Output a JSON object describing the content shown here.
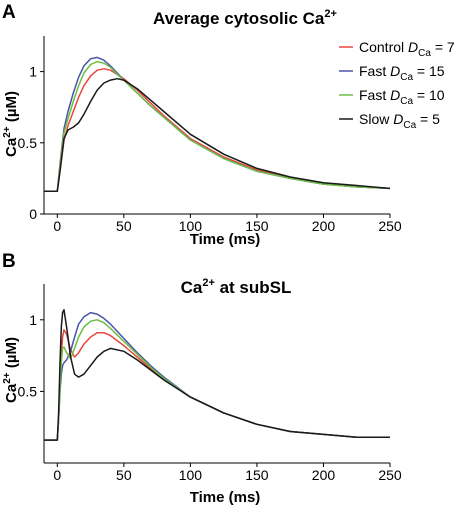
{
  "chart_data": [
    {
      "type": "line",
      "panel": "A",
      "title": "Average cytosolic Ca",
      "title_sup": "2+",
      "xlabel": "Time (ms)",
      "ylabel": "Ca",
      "ylabel_sup": "2+",
      "ylabel_unit": " (µM)",
      "xlim": [
        -10,
        250
      ],
      "ylim": [
        0,
        1.25
      ],
      "xticks": [
        0,
        50,
        100,
        150,
        200,
        250
      ],
      "yticks": [
        0,
        0.5,
        1
      ],
      "ytick_labels": [
        "0",
        "0.5",
        "1"
      ],
      "grid": false,
      "legend": {
        "position": "top-right",
        "entries": [
          {
            "prefix": "Control ",
            "italic": "D",
            "sub": "Ca",
            "suffix": " = 7",
            "color": "#e8473f"
          },
          {
            "prefix": "Fast ",
            "italic": "D",
            "sub": "Ca",
            "suffix": " = 15",
            "color": "#4a55a8"
          },
          {
            "prefix": "Fast ",
            "italic": "D",
            "sub": "Ca",
            "suffix": " = 10",
            "color": "#6dbe45"
          },
          {
            "prefix": "Slow ",
            "italic": "D",
            "sub": "Ca",
            "suffix": " = 5",
            "color": "#1a1a1a"
          }
        ]
      },
      "series": [
        {
          "name": "Control D_Ca = 7",
          "color": "#e8473f",
          "x": [
            -10,
            0,
            2,
            5,
            8,
            12,
            16,
            20,
            25,
            30,
            35,
            40,
            45,
            50,
            60,
            70,
            80,
            100,
            125,
            150,
            175,
            200,
            225,
            250
          ],
          "y": [
            0.16,
            0.16,
            0.3,
            0.52,
            0.62,
            0.72,
            0.82,
            0.9,
            0.97,
            1.01,
            1.02,
            1.01,
            0.98,
            0.95,
            0.87,
            0.78,
            0.69,
            0.53,
            0.4,
            0.31,
            0.25,
            0.21,
            0.19,
            0.18
          ]
        },
        {
          "name": "Fast D_Ca = 15",
          "color": "#4a55a8",
          "x": [
            -10,
            0,
            2,
            5,
            8,
            12,
            16,
            20,
            25,
            30,
            35,
            40,
            45,
            50,
            60,
            70,
            80,
            100,
            125,
            150,
            175,
            200,
            225,
            250
          ],
          "y": [
            0.16,
            0.16,
            0.35,
            0.6,
            0.72,
            0.85,
            0.96,
            1.04,
            1.09,
            1.1,
            1.08,
            1.04,
            0.99,
            0.94,
            0.85,
            0.76,
            0.68,
            0.52,
            0.39,
            0.3,
            0.25,
            0.21,
            0.19,
            0.18
          ]
        },
        {
          "name": "Fast D_Ca = 10",
          "color": "#6dbe45",
          "x": [
            -10,
            0,
            2,
            5,
            8,
            12,
            16,
            20,
            25,
            30,
            35,
            40,
            45,
            50,
            60,
            70,
            80,
            100,
            125,
            150,
            175,
            200,
            225,
            250
          ],
          "y": [
            0.16,
            0.16,
            0.33,
            0.57,
            0.67,
            0.79,
            0.9,
            0.99,
            1.05,
            1.07,
            1.06,
            1.03,
            0.98,
            0.94,
            0.85,
            0.76,
            0.68,
            0.52,
            0.39,
            0.3,
            0.25,
            0.21,
            0.19,
            0.18
          ]
        },
        {
          "name": "Slow D_Ca = 5",
          "color": "#1a1a1a",
          "x": [
            -10,
            0,
            2,
            5,
            8,
            12,
            16,
            20,
            25,
            30,
            35,
            40,
            45,
            50,
            60,
            70,
            80,
            100,
            125,
            150,
            175,
            200,
            225,
            250
          ],
          "y": [
            0.16,
            0.16,
            0.3,
            0.53,
            0.59,
            0.61,
            0.64,
            0.7,
            0.79,
            0.87,
            0.92,
            0.94,
            0.95,
            0.94,
            0.88,
            0.8,
            0.72,
            0.56,
            0.42,
            0.32,
            0.26,
            0.22,
            0.2,
            0.18
          ]
        }
      ]
    },
    {
      "type": "line",
      "panel": "B",
      "title": "Ca",
      "title_sup": "2+",
      "title_suffix": " at subSL",
      "xlabel": "Time (ms)",
      "ylabel": "Ca",
      "ylabel_sup": "2+",
      "ylabel_unit": " (µM)",
      "xlim": [
        -10,
        250
      ],
      "ylim": [
        0,
        1.25
      ],
      "xticks": [
        0,
        50,
        100,
        150,
        200,
        250
      ],
      "yticks": [
        0.5,
        1
      ],
      "ytick_labels": [
        "0.5",
        "1"
      ],
      "grid": false,
      "series": [
        {
          "name": "Control D_Ca = 7",
          "color": "#e8473f",
          "x": [
            -10,
            0,
            1,
            2,
            3,
            4,
            5,
            7,
            10,
            13,
            16,
            20,
            25,
            30,
            35,
            40,
            50,
            60,
            70,
            80,
            100,
            125,
            150,
            175,
            200,
            225,
            250
          ],
          "y": [
            0.16,
            0.16,
            0.3,
            0.55,
            0.75,
            0.88,
            0.93,
            0.9,
            0.79,
            0.74,
            0.77,
            0.83,
            0.88,
            0.91,
            0.91,
            0.89,
            0.82,
            0.74,
            0.66,
            0.59,
            0.46,
            0.35,
            0.27,
            0.22,
            0.2,
            0.18,
            0.18
          ]
        },
        {
          "name": "Fast D_Ca = 15",
          "color": "#4a55a8",
          "x": [
            -10,
            0,
            1,
            2,
            3,
            4,
            5,
            7,
            10,
            13,
            16,
            20,
            25,
            30,
            35,
            40,
            50,
            60,
            70,
            80,
            100,
            125,
            150,
            175,
            200,
            225,
            250
          ],
          "y": [
            0.16,
            0.16,
            0.3,
            0.5,
            0.62,
            0.68,
            0.7,
            0.72,
            0.78,
            0.88,
            0.97,
            1.02,
            1.05,
            1.04,
            1.01,
            0.97,
            0.87,
            0.77,
            0.68,
            0.6,
            0.46,
            0.35,
            0.27,
            0.22,
            0.2,
            0.18,
            0.18
          ]
        },
        {
          "name": "Fast D_Ca = 10",
          "color": "#6dbe45",
          "x": [
            -10,
            0,
            1,
            2,
            3,
            4,
            5,
            7,
            10,
            13,
            16,
            20,
            25,
            30,
            35,
            40,
            50,
            60,
            70,
            80,
            100,
            125,
            150,
            175,
            200,
            225,
            250
          ],
          "y": [
            0.16,
            0.16,
            0.3,
            0.53,
            0.7,
            0.8,
            0.81,
            0.77,
            0.73,
            0.8,
            0.88,
            0.95,
            0.99,
            1.0,
            0.98,
            0.94,
            0.85,
            0.76,
            0.67,
            0.59,
            0.46,
            0.35,
            0.27,
            0.22,
            0.2,
            0.18,
            0.18
          ]
        },
        {
          "name": "Slow D_Ca = 5",
          "color": "#1a1a1a",
          "x": [
            -10,
            0,
            1,
            2,
            3,
            4,
            5,
            7,
            10,
            13,
            16,
            20,
            25,
            30,
            35,
            40,
            50,
            60,
            70,
            80,
            100,
            125,
            150,
            175,
            200,
            225,
            250
          ],
          "y": [
            0.16,
            0.16,
            0.35,
            0.7,
            0.95,
            1.05,
            1.07,
            0.95,
            0.74,
            0.62,
            0.6,
            0.62,
            0.68,
            0.74,
            0.78,
            0.8,
            0.78,
            0.72,
            0.65,
            0.58,
            0.46,
            0.35,
            0.27,
            0.22,
            0.2,
            0.18,
            0.18
          ]
        }
      ]
    }
  ]
}
